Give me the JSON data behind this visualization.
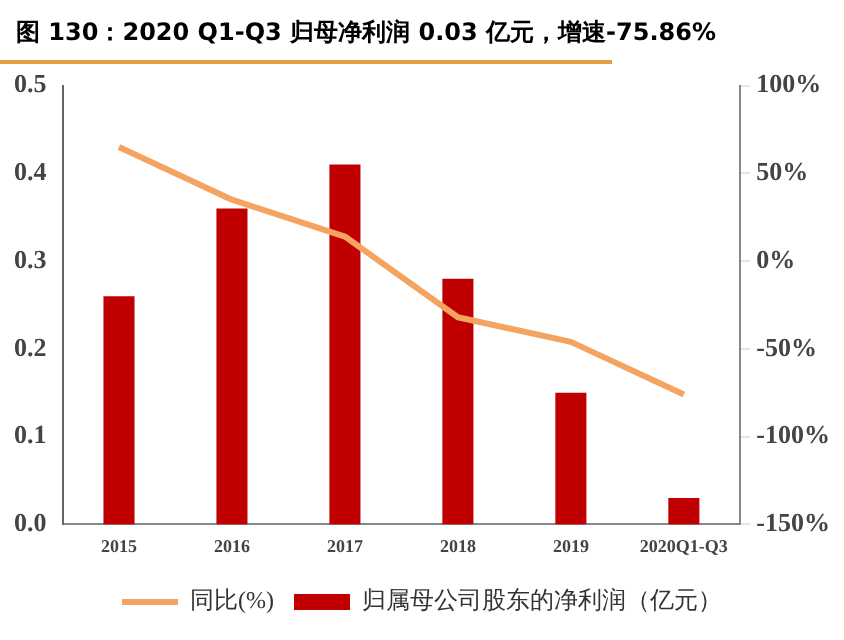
{
  "chart_data": {
    "type": "bar",
    "title": "图 130：2020 Q1-Q3 归母净利润 0.03 亿元，增速-75.86%",
    "categories": [
      "2015",
      "2016",
      "2017",
      "2018",
      "2019",
      "2020Q1-Q3"
    ],
    "series": [
      {
        "name": "归属母公司股东的净利润（亿元）",
        "color": "#c00000",
        "values": [
          0.26,
          0.36,
          0.41,
          0.28,
          0.15,
          0.03
        ]
      },
      {
        "name": "同比(%)",
        "type": "line",
        "axis": "y2",
        "color": "#f4a460",
        "values": [
          65,
          35,
          14,
          -32,
          -46,
          -76
        ]
      }
    ],
    "ylim": [
      0,
      0.5
    ],
    "yticks": [
      {
        "value": 0,
        "label": "0.0"
      },
      0.1,
      0.2,
      0.3,
      0.4,
      0.5
    ],
    "y2lim": [
      -150,
      100
    ],
    "y2ticks": [
      {
        "value": -150,
        "label": "-150%"
      },
      {
        "value": -100,
        "label": "-100%"
      },
      {
        "value": -50,
        "label": "-50%"
      },
      {
        "value": 0,
        "label": "0%"
      },
      {
        "value": 50,
        "label": "50%"
      },
      {
        "value": 100,
        "label": "100%"
      }
    ],
    "grid": false,
    "legend": "bottom",
    "marker": "none"
  }
}
